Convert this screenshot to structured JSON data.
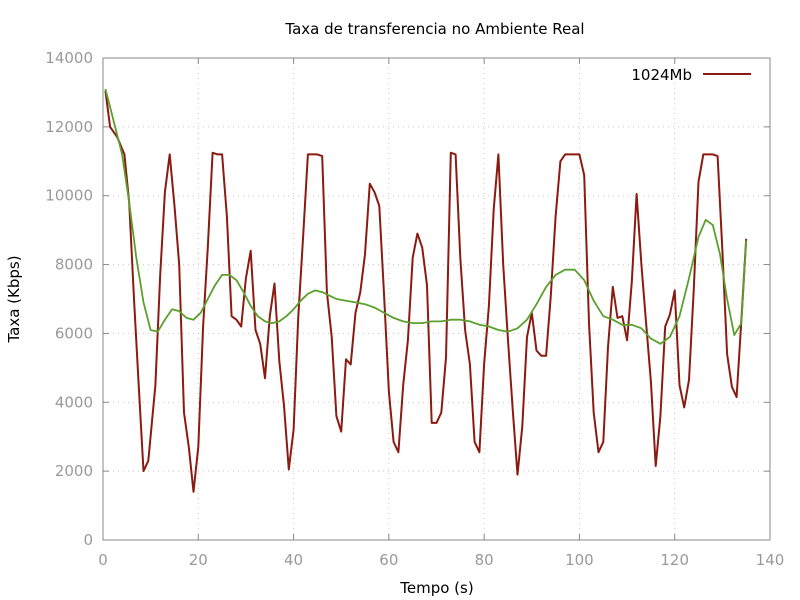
{
  "chart_data": {
    "type": "line",
    "title": "Taxa de transferencia no Ambiente Real",
    "xlabel": "Tempo (s)",
    "ylabel": "Taxa (Kbps)",
    "xlim": [
      0,
      140
    ],
    "ylim": [
      0,
      14000
    ],
    "xticks": [
      0,
      20,
      40,
      60,
      80,
      100,
      120,
      140
    ],
    "yticks": [
      0,
      2000,
      4000,
      6000,
      8000,
      10000,
      12000,
      14000
    ],
    "grid": true,
    "legend_position": "top-right",
    "series": [
      {
        "name": "1024Mb",
        "color": "#8b1a10",
        "points": [
          [
            0.5,
            13050
          ],
          [
            1.5,
            12000
          ],
          [
            3,
            11700
          ],
          [
            4.5,
            11200
          ],
          [
            5.5,
            9800
          ],
          [
            6.5,
            7000
          ],
          [
            7.5,
            4500
          ],
          [
            8.5,
            2000
          ],
          [
            9.5,
            2300
          ],
          [
            11,
            4500
          ],
          [
            12,
            7700
          ],
          [
            13,
            10100
          ],
          [
            14,
            11200
          ],
          [
            15,
            9700
          ],
          [
            16,
            8000
          ],
          [
            17,
            3700
          ],
          [
            18,
            2700
          ],
          [
            19,
            1400
          ],
          [
            20,
            2700
          ],
          [
            21,
            6200
          ],
          [
            22,
            8500
          ],
          [
            23,
            11250
          ],
          [
            24,
            11200
          ],
          [
            25,
            11200
          ],
          [
            26,
            9400
          ],
          [
            27,
            6500
          ],
          [
            28,
            6400
          ],
          [
            29,
            6200
          ],
          [
            30,
            7600
          ],
          [
            31,
            8400
          ],
          [
            32,
            6100
          ],
          [
            33,
            5700
          ],
          [
            34,
            4700
          ],
          [
            35,
            6500
          ],
          [
            36,
            7450
          ],
          [
            37,
            5200
          ],
          [
            38,
            3900
          ],
          [
            39,
            2050
          ],
          [
            40,
            3200
          ],
          [
            41,
            6500
          ],
          [
            42,
            8800
          ],
          [
            43,
            11200
          ],
          [
            44,
            11200
          ],
          [
            45,
            11200
          ],
          [
            46,
            11150
          ],
          [
            47,
            7200
          ],
          [
            48,
            5900
          ],
          [
            49,
            3600
          ],
          [
            50,
            3150
          ],
          [
            51,
            5250
          ],
          [
            52,
            5100
          ],
          [
            53,
            6600
          ],
          [
            54,
            7200
          ],
          [
            55,
            8300
          ],
          [
            56,
            10350
          ],
          [
            57,
            10100
          ],
          [
            58,
            9700
          ],
          [
            59,
            7100
          ],
          [
            60,
            4300
          ],
          [
            61,
            2850
          ],
          [
            62,
            2550
          ],
          [
            63,
            4500
          ],
          [
            64,
            5800
          ],
          [
            65,
            8200
          ],
          [
            66,
            8900
          ],
          [
            67,
            8500
          ],
          [
            68,
            7400
          ],
          [
            69,
            3400
          ],
          [
            70,
            3400
          ],
          [
            71,
            3700
          ],
          [
            72,
            5300
          ],
          [
            73,
            11250
          ],
          [
            74,
            11200
          ],
          [
            75,
            8200
          ],
          [
            76,
            6100
          ],
          [
            77,
            5100
          ],
          [
            78,
            2850
          ],
          [
            79,
            2550
          ],
          [
            80,
            5100
          ],
          [
            81,
            6800
          ],
          [
            82,
            9600
          ],
          [
            83,
            11200
          ],
          [
            84,
            8000
          ],
          [
            85,
            5800
          ],
          [
            86,
            3800
          ],
          [
            87,
            1900
          ],
          [
            88,
            3300
          ],
          [
            89,
            5900
          ],
          [
            90,
            6600
          ],
          [
            91,
            5500
          ],
          [
            92,
            5350
          ],
          [
            93,
            5350
          ],
          [
            94,
            7100
          ],
          [
            95,
            9400
          ],
          [
            96,
            11000
          ],
          [
            97,
            11200
          ],
          [
            98,
            11200
          ],
          [
            99,
            11200
          ],
          [
            100,
            11200
          ],
          [
            101,
            10600
          ],
          [
            102,
            6300
          ],
          [
            103,
            3700
          ],
          [
            104,
            2550
          ],
          [
            105,
            2850
          ],
          [
            106,
            5600
          ],
          [
            107,
            7350
          ],
          [
            108,
            6450
          ],
          [
            109,
            6500
          ],
          [
            110,
            5800
          ],
          [
            111,
            7500
          ],
          [
            112,
            10050
          ],
          [
            113,
            8000
          ],
          [
            114,
            6300
          ],
          [
            115,
            4600
          ],
          [
            116,
            2150
          ],
          [
            117,
            3600
          ],
          [
            118,
            6200
          ],
          [
            119,
            6550
          ],
          [
            120,
            7250
          ],
          [
            121,
            4500
          ],
          [
            122,
            3850
          ],
          [
            123,
            4650
          ],
          [
            124,
            7300
          ],
          [
            125,
            10400
          ],
          [
            126,
            11200
          ],
          [
            127,
            11200
          ],
          [
            128,
            11200
          ],
          [
            129,
            11150
          ],
          [
            130,
            8400
          ],
          [
            131,
            5400
          ],
          [
            132,
            4450
          ],
          [
            133,
            4150
          ],
          [
            134,
            6400
          ],
          [
            135,
            8750
          ]
        ]
      },
      {
        "name": "",
        "color": "#5aa02c",
        "points": [
          [
            0.5,
            13100
          ],
          [
            2,
            12300
          ],
          [
            4,
            11200
          ],
          [
            5.5,
            9800
          ],
          [
            7,
            8200
          ],
          [
            8.5,
            6900
          ],
          [
            10,
            6100
          ],
          [
            11.5,
            6050
          ],
          [
            13,
            6400
          ],
          [
            14.5,
            6700
          ],
          [
            16,
            6650
          ],
          [
            17.5,
            6450
          ],
          [
            19,
            6400
          ],
          [
            20.5,
            6600
          ],
          [
            22,
            7000
          ],
          [
            23.5,
            7400
          ],
          [
            25,
            7700
          ],
          [
            26.5,
            7700
          ],
          [
            28,
            7550
          ],
          [
            29.5,
            7200
          ],
          [
            31,
            6800
          ],
          [
            32.5,
            6500
          ],
          [
            34,
            6350
          ],
          [
            35.5,
            6300
          ],
          [
            37,
            6350
          ],
          [
            38.5,
            6500
          ],
          [
            40,
            6700
          ],
          [
            41.5,
            6950
          ],
          [
            43,
            7150
          ],
          [
            44.5,
            7250
          ],
          [
            46,
            7200
          ],
          [
            47.5,
            7100
          ],
          [
            49,
            7000
          ],
          [
            51,
            6950
          ],
          [
            53,
            6900
          ],
          [
            55,
            6850
          ],
          [
            57,
            6750
          ],
          [
            59,
            6600
          ],
          [
            61,
            6450
          ],
          [
            63,
            6350
          ],
          [
            65,
            6300
          ],
          [
            67,
            6300
          ],
          [
            69,
            6350
          ],
          [
            71,
            6350
          ],
          [
            73,
            6400
          ],
          [
            75,
            6400
          ],
          [
            77,
            6350
          ],
          [
            79,
            6250
          ],
          [
            81,
            6200
          ],
          [
            83,
            6100
          ],
          [
            85,
            6050
          ],
          [
            87,
            6150
          ],
          [
            89,
            6400
          ],
          [
            91,
            6850
          ],
          [
            93,
            7350
          ],
          [
            95,
            7700
          ],
          [
            97,
            7850
          ],
          [
            99,
            7850
          ],
          [
            101,
            7550
          ],
          [
            103,
            6950
          ],
          [
            105,
            6500
          ],
          [
            107,
            6400
          ],
          [
            109,
            6250
          ],
          [
            111,
            6250
          ],
          [
            113,
            6150
          ],
          [
            115,
            5850
          ],
          [
            117,
            5700
          ],
          [
            119,
            5900
          ],
          [
            121,
            6500
          ],
          [
            123,
            7600
          ],
          [
            125,
            8800
          ],
          [
            126.5,
            9300
          ],
          [
            128,
            9150
          ],
          [
            129.5,
            8300
          ],
          [
            131,
            7000
          ],
          [
            132.5,
            5950
          ],
          [
            134,
            6300
          ],
          [
            135,
            8700
          ]
        ]
      }
    ]
  }
}
